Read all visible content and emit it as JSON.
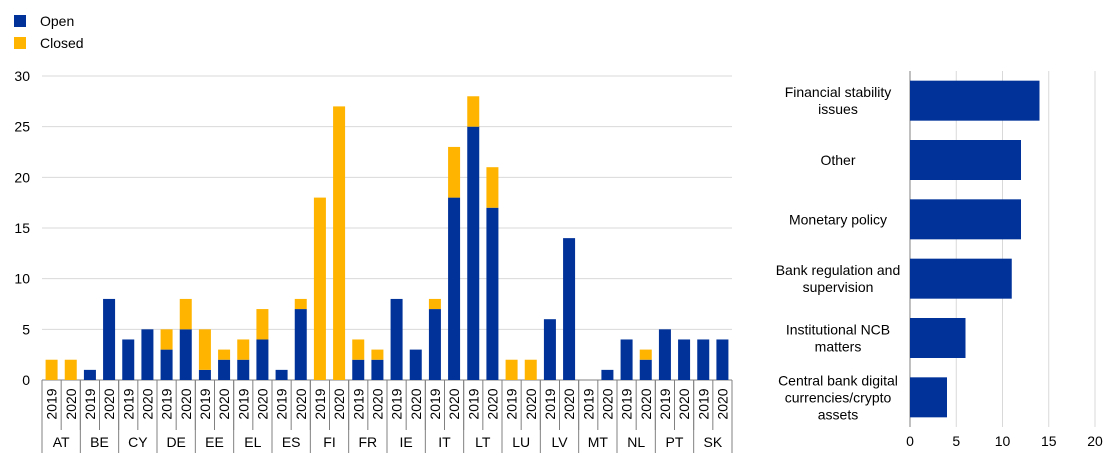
{
  "colors": {
    "open": "#003299",
    "closed": "#ffb400",
    "grid": "#d9d9d9",
    "axis": "#808080"
  },
  "chart_data": [
    {
      "type": "bar",
      "stacked": true,
      "legend": {
        "placement": "top-left",
        "entries": [
          "Open",
          "Closed"
        ]
      },
      "grid": true,
      "ylim": [
        0,
        30
      ],
      "yticks": [
        0,
        5,
        10,
        15,
        20,
        25,
        30
      ],
      "groups": [
        {
          "country": "AT",
          "years": [
            "2019",
            "2020"
          ],
          "open": [
            0,
            0
          ],
          "closed": [
            2,
            2
          ]
        },
        {
          "country": "BE",
          "years": [
            "2019",
            "2020"
          ],
          "open": [
            1,
            8
          ],
          "closed": [
            0,
            0
          ]
        },
        {
          "country": "CY",
          "years": [
            "2019",
            "2020"
          ],
          "open": [
            4,
            5
          ],
          "closed": [
            0,
            0
          ]
        },
        {
          "country": "DE",
          "years": [
            "2019",
            "2020"
          ],
          "open": [
            3,
            5
          ],
          "closed": [
            2,
            3
          ]
        },
        {
          "country": "EE",
          "years": [
            "2019",
            "2020"
          ],
          "open": [
            1,
            2
          ],
          "closed": [
            4,
            1
          ]
        },
        {
          "country": "EL",
          "years": [
            "2019",
            "2020"
          ],
          "open": [
            2,
            4
          ],
          "closed": [
            2,
            3
          ]
        },
        {
          "country": "ES",
          "years": [
            "2019",
            "2020"
          ],
          "open": [
            1,
            7
          ],
          "closed": [
            0,
            1
          ]
        },
        {
          "country": "FI",
          "years": [
            "2019",
            "2020"
          ],
          "open": [
            0,
            0
          ],
          "closed": [
            18,
            27
          ]
        },
        {
          "country": "FR",
          "years": [
            "2019",
            "2020"
          ],
          "open": [
            2,
            2
          ],
          "closed": [
            2,
            1
          ]
        },
        {
          "country": "IE",
          "years": [
            "2019",
            "2020"
          ],
          "open": [
            8,
            3
          ],
          "closed": [
            0,
            0
          ]
        },
        {
          "country": "IT",
          "years": [
            "2019",
            "2020"
          ],
          "open": [
            7,
            18
          ],
          "closed": [
            1,
            5
          ]
        },
        {
          "country": "LT",
          "years": [
            "2019",
            "2020"
          ],
          "open": [
            25,
            17
          ],
          "closed": [
            3,
            4
          ]
        },
        {
          "country": "LU",
          "years": [
            "2019",
            "2020"
          ],
          "open": [
            0,
            0
          ],
          "closed": [
            2,
            2
          ]
        },
        {
          "country": "LV",
          "years": [
            "2019",
            "2020"
          ],
          "open": [
            6,
            14
          ],
          "closed": [
            0,
            0
          ]
        },
        {
          "country": "MT",
          "years": [
            "2019",
            "2020"
          ],
          "open": [
            0,
            1
          ],
          "closed": [
            0,
            0
          ]
        },
        {
          "country": "NL",
          "years": [
            "2019",
            "2020"
          ],
          "open": [
            4,
            2
          ],
          "closed": [
            0,
            1
          ]
        },
        {
          "country": "PT",
          "years": [
            "2019",
            "2020"
          ],
          "open": [
            5,
            4
          ],
          "closed": [
            0,
            0
          ]
        },
        {
          "country": "SK",
          "years": [
            "2019",
            "2020"
          ],
          "open": [
            4,
            4
          ],
          "closed": [
            0,
            0
          ]
        }
      ]
    },
    {
      "type": "bar",
      "orientation": "horizontal",
      "grid": true,
      "xlim": [
        0,
        20
      ],
      "xticks": [
        0,
        5,
        10,
        15,
        20
      ],
      "categories": [
        [
          "Financial stability",
          "issues"
        ],
        [
          "Other"
        ],
        [
          "Monetary policy"
        ],
        [
          "Bank regulation and",
          "supervision"
        ],
        [
          "Institutional NCB",
          "matters"
        ],
        [
          "Central bank digital",
          "currencies/crypto",
          "assets"
        ]
      ],
      "values": [
        14,
        12,
        12,
        11,
        6,
        4
      ]
    }
  ]
}
